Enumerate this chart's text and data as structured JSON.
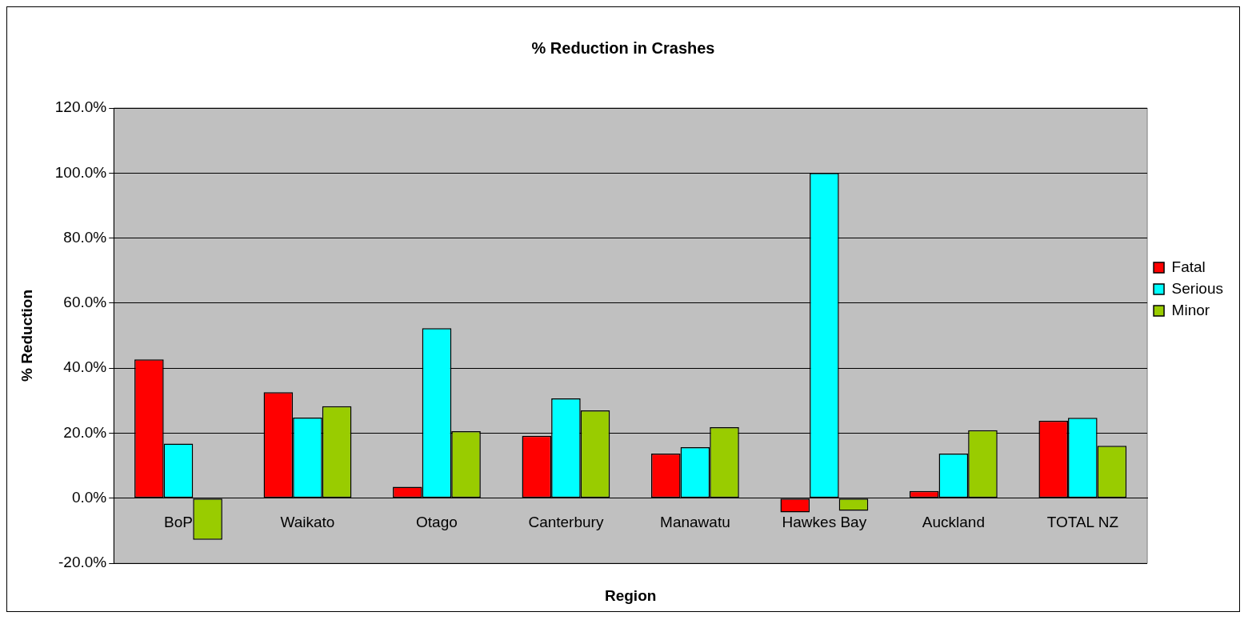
{
  "chart_data": {
    "type": "bar",
    "title": "% Reduction in Crashes",
    "xlabel": "Region",
    "ylabel": "% Reduction",
    "categories": [
      "BoP",
      "Waikato",
      "Otago",
      "Canterbury",
      "Manawatu",
      "Hawkes Bay",
      "Auckland",
      "TOTAL NZ"
    ],
    "series": [
      {
        "name": "Fatal",
        "color": "#ff0000",
        "values": [
          42.7,
          32.6,
          3.5,
          19.2,
          13.7,
          -4.4,
          2.2,
          23.8
        ]
      },
      {
        "name": "Serious",
        "color": "#00ffff",
        "values": [
          16.8,
          24.8,
          52.3,
          30.7,
          15.7,
          100,
          13.7,
          24.7
        ]
      },
      {
        "name": "Minor",
        "color": "#99cc00",
        "values": [
          -12.8,
          28.3,
          20.6,
          27.0,
          21.8,
          -3.9,
          20.9,
          16.1
        ]
      }
    ],
    "ylim": [
      -20,
      120
    ],
    "yticks": [
      {
        "value": -20,
        "label": "-20.0%"
      },
      {
        "value": 0,
        "label": "0.0%"
      },
      {
        "value": 20,
        "label": "20.0%"
      },
      {
        "value": 40,
        "label": "40.0%"
      },
      {
        "value": 60,
        "label": "60.0%"
      },
      {
        "value": 80,
        "label": "80.0%"
      },
      {
        "value": 100,
        "label": "100.0%"
      },
      {
        "value": 120,
        "label": "120.0%"
      }
    ],
    "grid": "y",
    "legend": "right"
  }
}
